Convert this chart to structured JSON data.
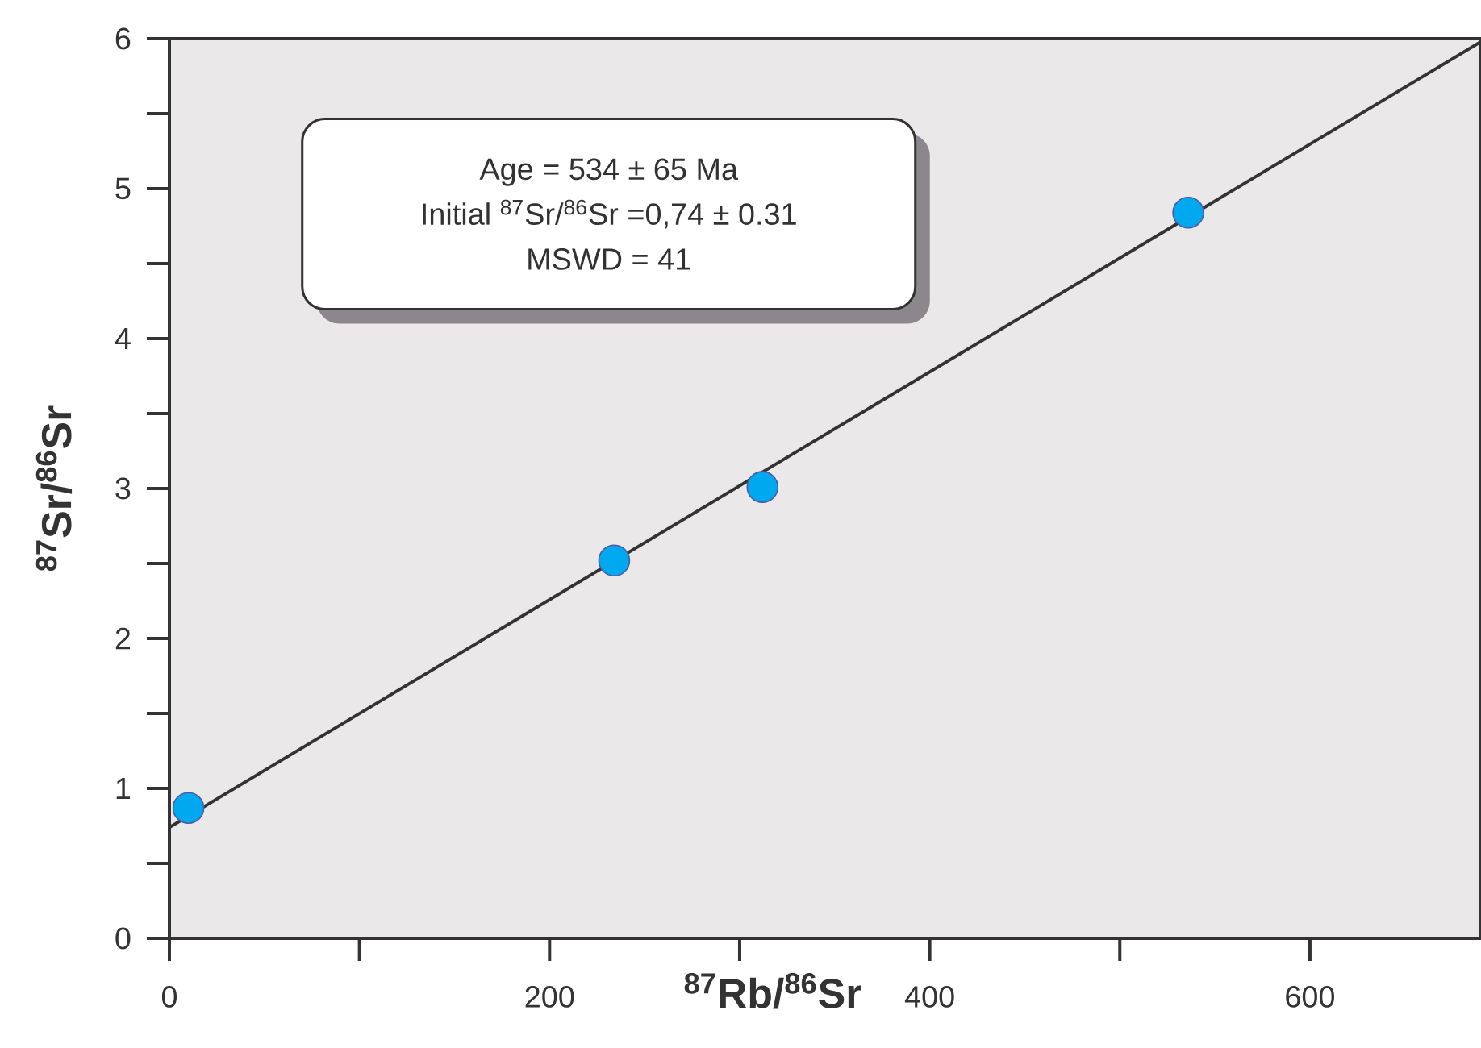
{
  "chart_data": {
    "type": "scatter",
    "xlabel": "$^{87}$Rb/$^{86}$Sr",
    "ylabel": "$^{87}$Sr/$^{86}$Sr",
    "xlim": [
      0,
      690
    ],
    "ylim": [
      0,
      6
    ],
    "xticks": [
      0,
      {
        "value": 100,
        "label": null
      },
      200,
      {
        "value": 300,
        "label": null
      },
      400,
      {
        "value": 500,
        "label": null
      },
      600
    ],
    "yticks": [
      0,
      {
        "value": 0.5,
        "label": null
      },
      1,
      {
        "value": 1.5,
        "label": null
      },
      2,
      {
        "value": 2.5,
        "label": null
      },
      3,
      {
        "value": 3.5,
        "label": null
      },
      4,
      {
        "value": 4.5,
        "label": null
      },
      5,
      {
        "value": 5.5,
        "label": null
      },
      6
    ],
    "annotations": [
      "Age = 534 ± 65 Ma",
      "Initial $^{87}$Sr/$^{86}$Sr =0,74 ± 0.31",
      "MSWD = 41"
    ],
    "series": [
      {
        "type": "line",
        "color": "#333333",
        "line_style": "solid",
        "marker": "none",
        "x": [
          0,
          690
        ],
        "values": [
          0.74,
          5.98
        ]
      },
      {
        "type": "scatter",
        "color": "#00a8f0",
        "marker": "circle",
        "x": [
          10,
          234,
          312,
          536
        ],
        "values": [
          0.87,
          2.52,
          3.01,
          4.84
        ]
      }
    ]
  }
}
